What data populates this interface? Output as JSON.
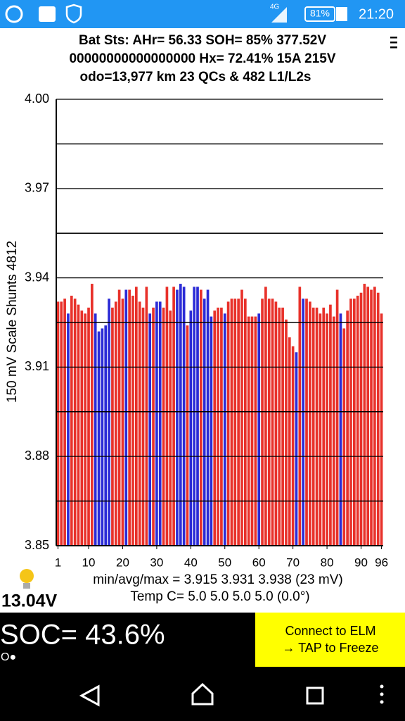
{
  "status_bar": {
    "network": "4G",
    "battery": "81%",
    "time": "21:20"
  },
  "header": {
    "line1": "Bat Sts: AHr= 56.33 SOH= 85% 377.52V",
    "line2": "00000000000000000   Hx= 72.41% 15A 215V",
    "line3": "odo=13,977 km  23 QCs  &  482 L1/L2s"
  },
  "chart_data": {
    "type": "bar",
    "ylabel": "150 mV Scale   Shunts 4812",
    "values": [
      3.932,
      3.932,
      3.933,
      3.928,
      3.934,
      3.933,
      3.931,
      3.929,
      3.928,
      3.93,
      3.938,
      3.928,
      3.922,
      3.923,
      3.924,
      3.933,
      3.93,
      3.932,
      3.936,
      3.933,
      3.936,
      3.936,
      3.934,
      3.937,
      3.932,
      3.93,
      3.937,
      3.928,
      3.93,
      3.932,
      3.932,
      3.93,
      3.937,
      3.929,
      3.937,
      3.936,
      3.938,
      3.937,
      3.924,
      3.929,
      3.937,
      3.937,
      3.936,
      3.933,
      3.936,
      3.927,
      3.929,
      3.93,
      3.93,
      3.928,
      3.932,
      3.933,
      3.933,
      3.933,
      3.936,
      3.933,
      3.927,
      3.927,
      3.927,
      3.928,
      3.933,
      3.937,
      3.933,
      3.933,
      3.932,
      3.93,
      3.93,
      3.926,
      3.92,
      3.917,
      3.915,
      3.937,
      3.933,
      3.933,
      3.932,
      3.93,
      3.93,
      3.928,
      3.93,
      3.928,
      3.931,
      3.927,
      3.936,
      3.928,
      3.923,
      3.929,
      3.933,
      3.933,
      3.934,
      3.935,
      3.938,
      3.937,
      3.936,
      3.937,
      3.935,
      3.928
    ],
    "colors": [
      "#e8312a",
      "#e8312a",
      "#e8312a",
      "#2b2bd6",
      "#e8312a",
      "#e8312a",
      "#e8312a",
      "#e8312a",
      "#e8312a",
      "#e8312a",
      "#e8312a",
      "#2b2bd6",
      "#2b2bd6",
      "#2b2bd6",
      "#2b2bd6",
      "#2b2bd6",
      "#e8312a",
      "#e8312a",
      "#e8312a",
      "#e8312a",
      "#2b2bd6",
      "#e8312a",
      "#e8312a",
      "#e8312a",
      "#e8312a",
      "#e8312a",
      "#e8312a",
      "#2b2bd6",
      "#e8312a",
      "#2b2bd6",
      "#2b2bd6",
      "#e8312a",
      "#e8312a",
      "#e8312a",
      "#e8312a",
      "#2b2bd6",
      "#2b2bd6",
      "#2b2bd6",
      "#e8312a",
      "#2b2bd6",
      "#2b2bd6",
      "#2b2bd6",
      "#e8312a",
      "#2b2bd6",
      "#2b2bd6",
      "#2b2bd6",
      "#e8312a",
      "#e8312a",
      "#e8312a",
      "#2b2bd6",
      "#e8312a",
      "#e8312a",
      "#e8312a",
      "#e8312a",
      "#e8312a",
      "#e8312a",
      "#e8312a",
      "#e8312a",
      "#e8312a",
      "#2b2bd6",
      "#e8312a",
      "#e8312a",
      "#e8312a",
      "#e8312a",
      "#e8312a",
      "#e8312a",
      "#e8312a",
      "#e8312a",
      "#e8312a",
      "#e8312a",
      "#2b2bd6",
      "#e8312a",
      "#2b2bd6",
      "#e8312a",
      "#e8312a",
      "#e8312a",
      "#e8312a",
      "#e8312a",
      "#e8312a",
      "#e8312a",
      "#e8312a",
      "#e8312a",
      "#e8312a",
      "#2b2bd6",
      "#e8312a",
      "#e8312a",
      "#e8312a",
      "#e8312a",
      "#e8312a",
      "#e8312a",
      "#e8312a",
      "#e8312a",
      "#e8312a",
      "#e8312a",
      "#e8312a",
      "#e8312a"
    ],
    "xlim": [
      0.5,
      96.5
    ],
    "xticks": [
      1,
      10,
      20,
      30,
      40,
      50,
      60,
      70,
      80,
      90,
      96
    ],
    "ylim": [
      3.85,
      4.0
    ],
    "yticks": [
      3.85,
      3.88,
      3.91,
      3.94,
      3.97,
      {
        "value": 4,
        "label": "4.00"
      }
    ],
    "minor_yticks": [
      3.865,
      3.895,
      3.925,
      3.955,
      3.985
    ],
    "grid": true
  },
  "stats": {
    "minavgmax": "min/avg/max = 3.915  3.931  3.938  (23 mV)",
    "temp": "Temp C= 5.0   5.0   5.0   5.0   (0.0°)"
  },
  "voltage": "13.04V",
  "soc": "SOC= 43.6%",
  "indicator": "O●",
  "button": {
    "line1": "Connect to ELM",
    "line2": "→ TAP to Freeze"
  }
}
